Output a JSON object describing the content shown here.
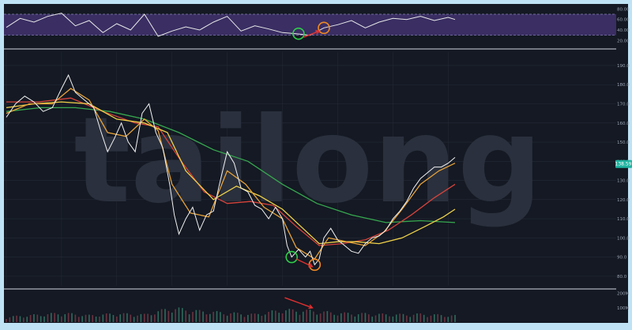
{
  "watermark": "tailong",
  "colors": {
    "frame": "#bfe3f5",
    "panel": "#141923",
    "grid": "#252b38",
    "price": "#f2f2f2",
    "ma_fast": "#e8a33a",
    "ma_slow": "#f0d24a",
    "ma_red": "#d8433b",
    "ma_green": "#37a84f",
    "rsi_band": "#3a2e63",
    "rsi_line": "#e8e8e8",
    "volume": "#3a4a5a",
    "highlight_green": "#2fcf4a",
    "highlight_orange": "#f08a24",
    "arrow": "#e23030",
    "last_price_tag": "#1fb3a0"
  },
  "rsi_axis": {
    "ticks": [
      "80.00",
      "60.00",
      "40.00",
      "20.00"
    ]
  },
  "price_axis": {
    "ticks": [
      "190.0",
      "180.0",
      "170.0",
      "160.0",
      "150.0",
      "140.0",
      "130.0",
      "120.0",
      "110.0",
      "100.0",
      "90.0",
      "80.0"
    ],
    "last_price": "138.59"
  },
  "volume_axis": {
    "ticks": [
      "200M",
      "100M"
    ]
  },
  "chart_data": {
    "type": "line",
    "price_range": [
      75,
      197
    ],
    "rsi_range": [
      10,
      85
    ],
    "price_series": [
      {
        "t": 0,
        "v": 163
      },
      {
        "t": 4,
        "v": 170
      },
      {
        "t": 8,
        "v": 174
      },
      {
        "t": 12,
        "v": 171
      },
      {
        "t": 16,
        "v": 166
      },
      {
        "t": 20,
        "v": 168
      },
      {
        "t": 24,
        "v": 178
      },
      {
        "t": 27,
        "v": 185
      },
      {
        "t": 30,
        "v": 176
      },
      {
        "t": 34,
        "v": 172
      },
      {
        "t": 38,
        "v": 168
      },
      {
        "t": 41,
        "v": 156
      },
      {
        "t": 44,
        "v": 145
      },
      {
        "t": 47,
        "v": 152
      },
      {
        "t": 50,
        "v": 160
      },
      {
        "t": 53,
        "v": 150
      },
      {
        "t": 56,
        "v": 145
      },
      {
        "t": 59,
        "v": 165
      },
      {
        "t": 62,
        "v": 170
      },
      {
        "t": 65,
        "v": 155
      },
      {
        "t": 68,
        "v": 147
      },
      {
        "t": 71,
        "v": 128
      },
      {
        "t": 73,
        "v": 112
      },
      {
        "t": 75,
        "v": 102
      },
      {
        "t": 78,
        "v": 110
      },
      {
        "t": 81,
        "v": 116
      },
      {
        "t": 84,
        "v": 104
      },
      {
        "t": 87,
        "v": 112
      },
      {
        "t": 90,
        "v": 114
      },
      {
        "t": 93,
        "v": 130
      },
      {
        "t": 96,
        "v": 145
      },
      {
        "t": 99,
        "v": 139
      },
      {
        "t": 102,
        "v": 126
      },
      {
        "t": 105,
        "v": 124
      },
      {
        "t": 108,
        "v": 117
      },
      {
        "t": 111,
        "v": 115
      },
      {
        "t": 114,
        "v": 110
      },
      {
        "t": 117,
        "v": 116
      },
      {
        "t": 120,
        "v": 110
      },
      {
        "t": 122,
        "v": 96
      },
      {
        "t": 124,
        "v": 90
      },
      {
        "t": 127,
        "v": 94
      },
      {
        "t": 130,
        "v": 90
      },
      {
        "t": 132,
        "v": 93
      },
      {
        "t": 134,
        "v": 86
      },
      {
        "t": 136,
        "v": 89
      },
      {
        "t": 138,
        "v": 100
      },
      {
        "t": 141,
        "v": 105
      },
      {
        "t": 144,
        "v": 99
      },
      {
        "t": 147,
        "v": 96
      },
      {
        "t": 150,
        "v": 93
      },
      {
        "t": 153,
        "v": 92
      },
      {
        "t": 156,
        "v": 97
      },
      {
        "t": 159,
        "v": 100
      },
      {
        "t": 162,
        "v": 101
      },
      {
        "t": 165,
        "v": 104
      },
      {
        "t": 168,
        "v": 110
      },
      {
        "t": 171,
        "v": 114
      },
      {
        "t": 174,
        "v": 119
      },
      {
        "t": 177,
        "v": 126
      },
      {
        "t": 180,
        "v": 131
      },
      {
        "t": 183,
        "v": 134
      },
      {
        "t": 186,
        "v": 137
      },
      {
        "t": 189,
        "v": 137
      },
      {
        "t": 192,
        "v": 139
      },
      {
        "t": 195,
        "v": 142
      }
    ],
    "ma_fast": [
      {
        "t": 0,
        "v": 165
      },
      {
        "t": 10,
        "v": 170
      },
      {
        "t": 20,
        "v": 170
      },
      {
        "t": 28,
        "v": 178
      },
      {
        "t": 36,
        "v": 172
      },
      {
        "t": 44,
        "v": 155
      },
      {
        "t": 52,
        "v": 153
      },
      {
        "t": 60,
        "v": 162
      },
      {
        "t": 66,
        "v": 156
      },
      {
        "t": 72,
        "v": 128
      },
      {
        "t": 80,
        "v": 113
      },
      {
        "t": 88,
        "v": 111
      },
      {
        "t": 96,
        "v": 135
      },
      {
        "t": 104,
        "v": 128
      },
      {
        "t": 112,
        "v": 116
      },
      {
        "t": 120,
        "v": 110
      },
      {
        "t": 126,
        "v": 95
      },
      {
        "t": 134,
        "v": 89
      },
      {
        "t": 140,
        "v": 100
      },
      {
        "t": 148,
        "v": 98
      },
      {
        "t": 156,
        "v": 96
      },
      {
        "t": 164,
        "v": 103
      },
      {
        "t": 172,
        "v": 115
      },
      {
        "t": 180,
        "v": 128
      },
      {
        "t": 188,
        "v": 135
      },
      {
        "t": 195,
        "v": 139
      }
    ],
    "ma_slow": [
      {
        "t": 0,
        "v": 168
      },
      {
        "t": 12,
        "v": 170
      },
      {
        "t": 24,
        "v": 171
      },
      {
        "t": 36,
        "v": 170
      },
      {
        "t": 48,
        "v": 162
      },
      {
        "t": 60,
        "v": 160
      },
      {
        "t": 70,
        "v": 155
      },
      {
        "t": 78,
        "v": 135
      },
      {
        "t": 90,
        "v": 120
      },
      {
        "t": 100,
        "v": 127
      },
      {
        "t": 110,
        "v": 122
      },
      {
        "t": 120,
        "v": 115
      },
      {
        "t": 128,
        "v": 106
      },
      {
        "t": 136,
        "v": 97
      },
      {
        "t": 144,
        "v": 98
      },
      {
        "t": 152,
        "v": 98
      },
      {
        "t": 162,
        "v": 97
      },
      {
        "t": 172,
        "v": 100
      },
      {
        "t": 182,
        "v": 106
      },
      {
        "t": 190,
        "v": 111
      },
      {
        "t": 195,
        "v": 115
      }
    ],
    "ma_red": [
      {
        "t": 0,
        "v": 171
      },
      {
        "t": 14,
        "v": 171
      },
      {
        "t": 28,
        "v": 173
      },
      {
        "t": 42,
        "v": 166
      },
      {
        "t": 56,
        "v": 160
      },
      {
        "t": 66,
        "v": 158
      },
      {
        "t": 76,
        "v": 140
      },
      {
        "t": 86,
        "v": 124
      },
      {
        "t": 96,
        "v": 118
      },
      {
        "t": 106,
        "v": 119
      },
      {
        "t": 116,
        "v": 117
      },
      {
        "t": 126,
        "v": 106
      },
      {
        "t": 136,
        "v": 96
      },
      {
        "t": 146,
        "v": 97
      },
      {
        "t": 156,
        "v": 99
      },
      {
        "t": 166,
        "v": 104
      },
      {
        "t": 176,
        "v": 112
      },
      {
        "t": 186,
        "v": 121
      },
      {
        "t": 195,
        "v": 128
      }
    ],
    "ma_green": [
      {
        "t": 0,
        "v": 166
      },
      {
        "t": 15,
        "v": 168
      },
      {
        "t": 30,
        "v": 168
      },
      {
        "t": 45,
        "v": 166
      },
      {
        "t": 60,
        "v": 162
      },
      {
        "t": 75,
        "v": 155
      },
      {
        "t": 90,
        "v": 146
      },
      {
        "t": 105,
        "v": 140
      },
      {
        "t": 120,
        "v": 128
      },
      {
        "t": 135,
        "v": 118
      },
      {
        "t": 150,
        "v": 112
      },
      {
        "t": 165,
        "v": 108
      },
      {
        "t": 180,
        "v": 109
      },
      {
        "t": 195,
        "v": 108
      }
    ],
    "rsi_series": [
      {
        "t": 0,
        "v": 45
      },
      {
        "t": 6,
        "v": 62
      },
      {
        "t": 12,
        "v": 55
      },
      {
        "t": 18,
        "v": 66
      },
      {
        "t": 24,
        "v": 72
      },
      {
        "t": 30,
        "v": 48
      },
      {
        "t": 36,
        "v": 58
      },
      {
        "t": 42,
        "v": 35
      },
      {
        "t": 48,
        "v": 52
      },
      {
        "t": 54,
        "v": 40
      },
      {
        "t": 60,
        "v": 70
      },
      {
        "t": 66,
        "v": 28
      },
      {
        "t": 72,
        "v": 38
      },
      {
        "t": 78,
        "v": 46
      },
      {
        "t": 84,
        "v": 40
      },
      {
        "t": 90,
        "v": 55
      },
      {
        "t": 96,
        "v": 66
      },
      {
        "t": 102,
        "v": 38
      },
      {
        "t": 108,
        "v": 48
      },
      {
        "t": 114,
        "v": 42
      },
      {
        "t": 120,
        "v": 35
      },
      {
        "t": 126,
        "v": 33
      },
      {
        "t": 132,
        "v": 30
      },
      {
        "t": 138,
        "v": 44
      },
      {
        "t": 144,
        "v": 50
      },
      {
        "t": 150,
        "v": 58
      },
      {
        "t": 156,
        "v": 44
      },
      {
        "t": 162,
        "v": 55
      },
      {
        "t": 168,
        "v": 62
      },
      {
        "t": 174,
        "v": 60
      },
      {
        "t": 180,
        "v": 66
      },
      {
        "t": 186,
        "v": 58
      },
      {
        "t": 192,
        "v": 64
      },
      {
        "t": 195,
        "v": 60
      }
    ],
    "volume": [
      {
        "t": 0,
        "v": 40
      },
      {
        "t": 12,
        "v": 55
      },
      {
        "t": 24,
        "v": 70
      },
      {
        "t": 36,
        "v": 52
      },
      {
        "t": 48,
        "v": 66
      },
      {
        "t": 60,
        "v": 58
      },
      {
        "t": 72,
        "v": 110
      },
      {
        "t": 84,
        "v": 85
      },
      {
        "t": 96,
        "v": 72
      },
      {
        "t": 108,
        "v": 60
      },
      {
        "t": 120,
        "v": 95
      },
      {
        "t": 132,
        "v": 88
      },
      {
        "t": 144,
        "v": 70
      },
      {
        "t": 156,
        "v": 65
      },
      {
        "t": 168,
        "v": 58
      },
      {
        "t": 180,
        "v": 62
      },
      {
        "t": 195,
        "v": 50
      }
    ],
    "annotations": [
      {
        "kind": "circle",
        "panel": "rsi",
        "t": 127,
        "v": 33,
        "color": "green"
      },
      {
        "kind": "circle",
        "panel": "rsi",
        "t": 138,
        "v": 44,
        "color": "orange"
      },
      {
        "kind": "arrow",
        "panel": "rsi",
        "from": {
          "t": 129,
          "v": 26
        },
        "to": {
          "t": 136,
          "v": 38
        }
      },
      {
        "kind": "circle",
        "panel": "price",
        "t": 124,
        "v": 90,
        "color": "green"
      },
      {
        "kind": "circle",
        "panel": "price",
        "t": 134,
        "v": 86,
        "color": "orange"
      },
      {
        "kind": "arrow",
        "panel": "price",
        "from": {
          "t": 126,
          "v": 89
        },
        "to": {
          "t": 133,
          "v": 85
        }
      },
      {
        "kind": "arrow",
        "panel": "volume",
        "from": {
          "t": 121,
          "v": 170
        },
        "to": {
          "t": 133,
          "v": 100
        }
      }
    ]
  }
}
